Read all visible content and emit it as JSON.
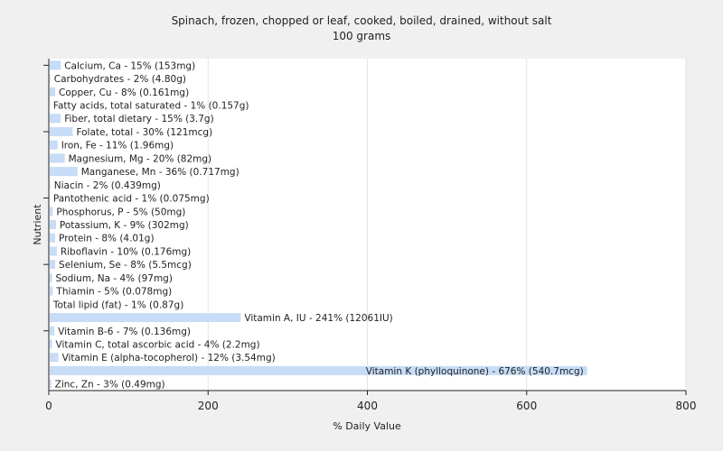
{
  "chart_data": {
    "type": "bar",
    "orientation": "horizontal",
    "title": "Spinach, frozen, chopped or leaf, cooked, boiled, drained, without salt",
    "subtitle": "100 grams",
    "xlabel": "% Daily Value",
    "ylabel": "Nutrient",
    "xlim": [
      0,
      800
    ],
    "xticks": [
      "0",
      "200",
      "400",
      "600",
      "800"
    ],
    "grid": true,
    "bar_color": "#c6dcf7",
    "bars": [
      {
        "label": "Calcium, Ca - 15% (153mg)",
        "value": 15
      },
      {
        "label": "Carbohydrates - 2% (4.80g)",
        "value": 2
      },
      {
        "label": "Copper, Cu - 8% (0.161mg)",
        "value": 8
      },
      {
        "label": "Fatty acids, total saturated - 1% (0.157g)",
        "value": 1
      },
      {
        "label": "Fiber, total dietary - 15% (3.7g)",
        "value": 15
      },
      {
        "label": "Folate, total - 30% (121mcg)",
        "value": 30
      },
      {
        "label": "Iron, Fe - 11% (1.96mg)",
        "value": 11
      },
      {
        "label": "Magnesium, Mg - 20% (82mg)",
        "value": 20
      },
      {
        "label": "Manganese, Mn - 36% (0.717mg)",
        "value": 36
      },
      {
        "label": "Niacin - 2% (0.439mg)",
        "value": 2
      },
      {
        "label": "Pantothenic acid - 1% (0.075mg)",
        "value": 1
      },
      {
        "label": "Phosphorus, P - 5% (50mg)",
        "value": 5
      },
      {
        "label": "Potassium, K - 9% (302mg)",
        "value": 9
      },
      {
        "label": "Protein - 8% (4.01g)",
        "value": 8
      },
      {
        "label": "Riboflavin - 10% (0.176mg)",
        "value": 10
      },
      {
        "label": "Selenium, Se - 8% (5.5mcg)",
        "value": 8
      },
      {
        "label": "Sodium, Na - 4% (97mg)",
        "value": 4
      },
      {
        "label": "Thiamin - 5% (0.078mg)",
        "value": 5
      },
      {
        "label": "Total lipid (fat) - 1% (0.87g)",
        "value": 1
      },
      {
        "label": "Vitamin A, IU - 241% (12061IU)",
        "value": 241
      },
      {
        "label": "Vitamin B-6 - 7% (0.136mg)",
        "value": 7
      },
      {
        "label": "Vitamin C, total ascorbic acid - 4% (2.2mg)",
        "value": 4
      },
      {
        "label": "Vitamin E (alpha-tocopherol) - 12% (3.54mg)",
        "value": 12
      },
      {
        "label": "Vitamin K (phylloquinone) - 676% (540.7mcg)",
        "value": 676
      },
      {
        "label": "Zinc, Zn - 3% (0.49mg)",
        "value": 3
      }
    ]
  }
}
